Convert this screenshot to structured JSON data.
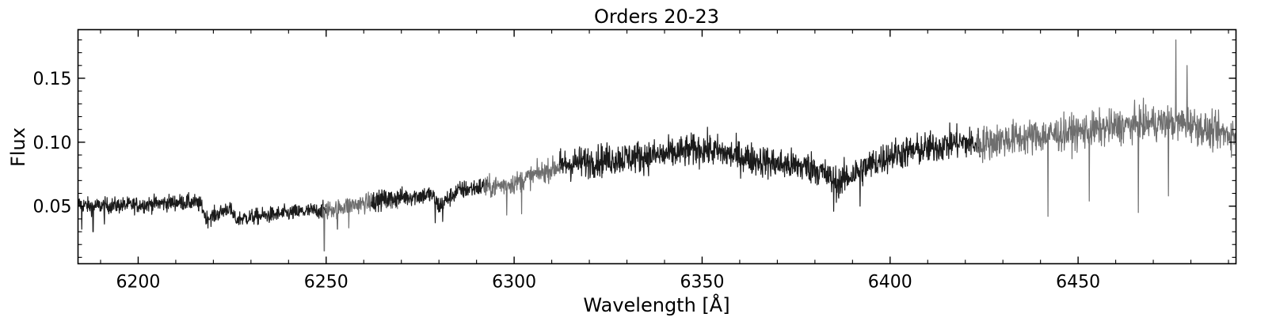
{
  "chart_data": {
    "type": "line",
    "title": "Orders 20-23",
    "xlabel": "Wavelength [Å]",
    "ylabel": "Flux",
    "xlim": [
      6184,
      6492
    ],
    "ylim": [
      0.005,
      0.188
    ],
    "x_ticks": [
      {
        "value": 6200,
        "label": "6200"
      },
      {
        "value": 6250,
        "label": "6250"
      },
      {
        "value": 6300,
        "label": "6300"
      },
      {
        "value": 6350,
        "label": "6350"
      },
      {
        "value": 6400,
        "label": "6400"
      },
      {
        "value": 6450,
        "label": "6450"
      }
    ],
    "y_ticks": [
      {
        "value": 0.05,
        "label": "0.05"
      },
      {
        "value": 0.1,
        "label": "0.10"
      },
      {
        "value": 0.15,
        "label": "0.15"
      }
    ],
    "x_minor_step": 10,
    "y_minor_step": 0.01,
    "grid": false,
    "series": [
      {
        "color": "#1a1a1a",
        "noise": 0.006,
        "points": [
          [
            6184,
            0.052
          ],
          [
            6187,
            0.05
          ],
          [
            6200,
            0.051
          ],
          [
            6210,
            0.053
          ],
          [
            6215,
            0.053
          ],
          [
            6217,
            0.05
          ],
          [
            6218,
            0.04
          ],
          [
            6222,
            0.045
          ],
          [
            6224,
            0.049
          ],
          [
            6226,
            0.04
          ],
          [
            6235,
            0.043
          ],
          [
            6245,
            0.046
          ],
          [
            6250,
            0.047
          ]
        ],
        "absorption": [
          [
            6185,
            0.032
          ],
          [
            6188,
            0.03
          ],
          [
            6191,
            0.036
          ],
          [
            6218,
            0.036
          ],
          [
            6226,
            0.037
          ]
        ]
      },
      {
        "color": "#6e6e6e",
        "noise": 0.007,
        "points": [
          [
            6249,
            0.046
          ],
          [
            6255,
            0.05
          ],
          [
            6262,
            0.053
          ],
          [
            6269,
            0.055
          ]
        ],
        "absorption": [
          [
            6249.5,
            0.015
          ],
          [
            6253,
            0.032
          ],
          [
            6256,
            0.033
          ]
        ]
      },
      {
        "color": "#1a1a1a",
        "noise": 0.007,
        "points": [
          [
            6262,
            0.054
          ],
          [
            6270,
            0.057
          ],
          [
            6278,
            0.059
          ],
          [
            6280,
            0.05
          ],
          [
            6285,
            0.062
          ],
          [
            6293,
            0.066
          ]
        ],
        "absorption": [
          [
            6279,
            0.037
          ],
          [
            6281,
            0.038
          ]
        ]
      },
      {
        "color": "#6e6e6e",
        "noise": 0.008,
        "points": [
          [
            6292,
            0.064
          ],
          [
            6300,
            0.068
          ],
          [
            6306,
            0.075
          ],
          [
            6313,
            0.082
          ]
        ],
        "absorption": [
          [
            6298,
            0.043
          ],
          [
            6302,
            0.044
          ]
        ]
      },
      {
        "color": "#1a1a1a",
        "noise": 0.012,
        "points": [
          [
            6312,
            0.082
          ],
          [
            6320,
            0.085
          ],
          [
            6330,
            0.088
          ],
          [
            6340,
            0.09
          ],
          [
            6350,
            0.095
          ],
          [
            6358,
            0.09
          ],
          [
            6370,
            0.083
          ],
          [
            6380,
            0.08
          ],
          [
            6386,
            0.068
          ],
          [
            6390,
            0.075
          ],
          [
            6400,
            0.09
          ],
          [
            6410,
            0.095
          ],
          [
            6418,
            0.1
          ],
          [
            6424,
            0.098
          ]
        ],
        "absorption": [
          [
            6385,
            0.046
          ],
          [
            6392,
            0.05
          ]
        ]
      },
      {
        "color": "#6e6e6e",
        "noise": 0.013,
        "points": [
          [
            6423,
            0.098
          ],
          [
            6430,
            0.102
          ],
          [
            6440,
            0.105
          ],
          [
            6450,
            0.108
          ],
          [
            6460,
            0.112
          ],
          [
            6470,
            0.115
          ],
          [
            6480,
            0.115
          ],
          [
            6485,
            0.108
          ],
          [
            6492,
            0.106
          ]
        ],
        "absorption": [
          [
            6442,
            0.042
          ],
          [
            6453,
            0.054
          ],
          [
            6466,
            0.045
          ],
          [
            6474,
            0.058
          ]
        ],
        "emission": [
          [
            6476,
            0.18
          ],
          [
            6479,
            0.16
          ]
        ]
      }
    ]
  }
}
